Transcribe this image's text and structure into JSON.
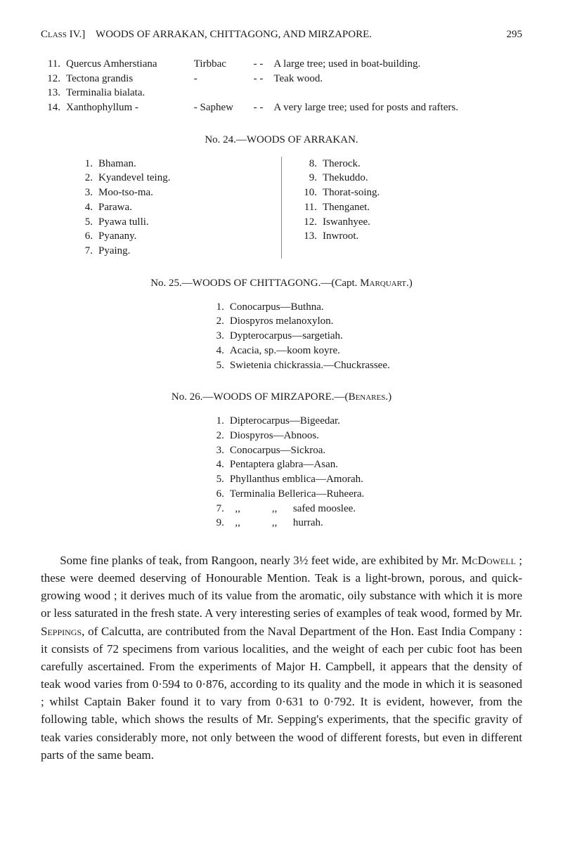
{
  "header": {
    "class_label": "Class IV.]",
    "title": "WOODS OF ARRAKAN, CHITTAGONG, AND MIRZAPORE.",
    "page": "295"
  },
  "hw": {
    "rows": [
      {
        "num": "11.",
        "name": "Quercus Amherstiana",
        "mid": "Tirbbac",
        "dash": "-  -",
        "desc": "A large tree; used in boat-building."
      },
      {
        "num": "12.",
        "name": "Tectona grandis",
        "mid": "-",
        "dash": "-  -",
        "desc": "Teak wood."
      },
      {
        "num": "13.",
        "name": "Terminalia bialata.",
        "mid": "",
        "dash": "",
        "desc": ""
      },
      {
        "num": "14.",
        "name": "Xanthophyllum -",
        "mid": "- Saphew",
        "dash": "-  -",
        "desc": "A very large tree; used for posts and rafters."
      }
    ]
  },
  "sec24": {
    "title": "No. 24.—WOODS OF ARRAKAN.",
    "left": [
      {
        "num": "1.",
        "name": "Bhaman."
      },
      {
        "num": "2.",
        "name": "Kyandevel teing."
      },
      {
        "num": "3.",
        "name": "Moo-tso-ma."
      },
      {
        "num": "4.",
        "name": "Parawa."
      },
      {
        "num": "5.",
        "name": "Pyawa tulli."
      },
      {
        "num": "6.",
        "name": "Pyanany."
      },
      {
        "num": "7.",
        "name": "Pyaing."
      }
    ],
    "right": [
      {
        "num": "8.",
        "name": "Therock."
      },
      {
        "num": "9.",
        "name": "Thekuddo."
      },
      {
        "num": "10.",
        "name": "Thorat-soing."
      },
      {
        "num": "11.",
        "name": "Thenganet."
      },
      {
        "num": "12.",
        "name": "Iswanhyee."
      },
      {
        "num": "13.",
        "name": "Inwroot."
      }
    ]
  },
  "sec25": {
    "title": "No. 25.—WOODS OF CHITTAGONG.—(Capt. Marquart.)",
    "items": [
      {
        "num": "1.",
        "name": "Conocarpus—Buthna."
      },
      {
        "num": "2.",
        "name": "Diospyros melanoxylon."
      },
      {
        "num": "3.",
        "name": "Dypterocarpus—sargetiah."
      },
      {
        "num": "4.",
        "name": "Acacia, sp.—koom koyre."
      },
      {
        "num": "5.",
        "name": "Swietenia chickrassia.—Chuckrassee."
      }
    ]
  },
  "sec26": {
    "title": "No. 26.—WOODS OF MIRZAPORE.—(Benares.)",
    "items": [
      {
        "num": "1.",
        "name": "Dipterocarpus—Bigeedar."
      },
      {
        "num": "2.",
        "name": "Diospyros—Abnoos."
      },
      {
        "num": "3.",
        "name": "Conocarpus—Sickroa."
      },
      {
        "num": "4.",
        "name": "Pentaptera glabra—Asan."
      },
      {
        "num": "5.",
        "name": "Phyllanthus emblica—Amorah."
      },
      {
        "num": "6.",
        "name": "Terminalia Bellerica—Ruheera."
      },
      {
        "num": "7.",
        "name": "  ,,            ,,      safed mooslee."
      },
      {
        "num": "9.",
        "name": "  ,,            ,,      hurrah."
      }
    ]
  },
  "para": {
    "t1": "Some fine planks of teak, from Rangoon, nearly 3½ feet wide, are exhibited by Mr. ",
    "n1": "McDowell",
    "t2": " ; these were deemed deserving of Honourable Mention.  Teak is a light-brown, porous, and quick-growing wood ; it derives much of its value from the aromatic, oily substance with which it is more or less saturated in the fresh state. A very interesting series of examples of teak wood, formed by Mr. ",
    "n2": "Seppings",
    "t3": ", of Calcutta, are contributed from the Naval Department of the Hon. East India Company : it consists of 72 specimens from various localities, and the weight of each per cubic foot has been carefully ascertained.  From the experiments of Major H. Campbell, it appears that the density of teak wood varies from 0·594 to 0·876, according to its quality and the mode in which it is seasoned ; whilst Captain Baker found it to vary from 0·631 to 0·792.  It is evident, however, from the following table, which shows the results of Mr. Sepping's experiments, that the specific gravity of teak varies considerably more, not only between the wood of different forests, but even in different parts of the same beam."
  }
}
